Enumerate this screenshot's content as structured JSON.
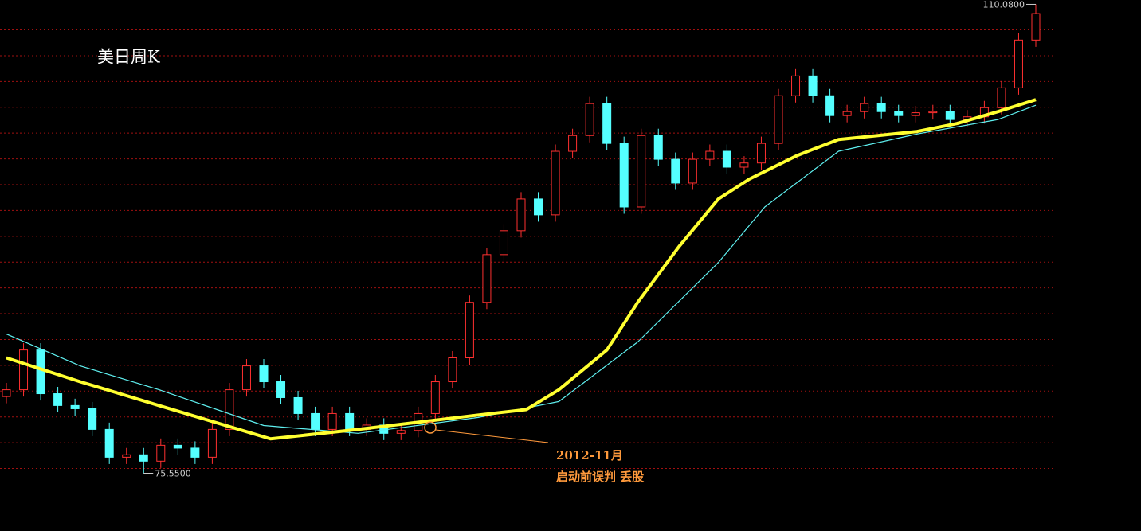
{
  "chart_data": {
    "type": "candlestick",
    "title": "美日周K",
    "ylim": [
      71.3,
      110.4
    ],
    "grid_y": [
      108.2,
      106.3,
      104.4,
      102.5,
      100.6,
      98.7,
      96.8,
      94.9,
      93.0,
      91.1,
      89.2,
      87.3,
      85.4,
      83.5,
      81.6,
      79.7,
      77.8,
      75.9
    ],
    "grid_color": "#a01010",
    "up_color": "#ff3030",
    "down_color": "#54ffff",
    "open": [
      81.2,
      81.7,
      84.63,
      81.41,
      80.54,
      80.3,
      78.78,
      76.73,
      76.91,
      76.44,
      77.61,
      77.4,
      76.73,
      78.78,
      81.7,
      83.46,
      82.29,
      81.12,
      79.95,
      78.78,
      79.95,
      78.78,
      79.1,
      78.49,
      78.7,
      79.95,
      82.29,
      84.05,
      88.14,
      91.65,
      93.41,
      95.75,
      94.58,
      99.26,
      100.42,
      102.77,
      99.84,
      95.16,
      100.42,
      98.67,
      96.92,
      98.67,
      99.26,
      98.09,
      98.4,
      99.84,
      103.35,
      104.81,
      103.35,
      101.89,
      102.18,
      102.77,
      102.18,
      101.89,
      102.1,
      102.18,
      101.6,
      101.8,
      102.47,
      103.93,
      107.45
    ],
    "high": [
      82.2,
      85.13,
      85.13,
      81.91,
      81.04,
      80.8,
      79.28,
      77.41,
      77.41,
      78.11,
      78.11,
      77.9,
      79.28,
      82.2,
      83.96,
      83.96,
      82.79,
      81.62,
      80.45,
      80.45,
      80.45,
      79.6,
      79.6,
      79.2,
      80.45,
      82.79,
      84.55,
      88.64,
      92.15,
      93.91,
      96.25,
      96.25,
      99.76,
      100.92,
      103.27,
      103.27,
      100.34,
      100.92,
      100.92,
      99.17,
      99.17,
      99.76,
      99.76,
      98.9,
      100.34,
      103.85,
      105.31,
      105.31,
      103.85,
      102.68,
      103.27,
      103.27,
      102.68,
      102.6,
      102.68,
      102.68,
      102.3,
      102.97,
      104.43,
      107.95,
      110.08
    ],
    "low": [
      80.7,
      81.2,
      80.91,
      80.04,
      79.8,
      78.28,
      76.23,
      76.23,
      75.55,
      75.94,
      76.9,
      76.23,
      76.23,
      78.28,
      81.2,
      81.79,
      80.62,
      79.45,
      78.28,
      78.28,
      78.28,
      78.28,
      77.99,
      77.99,
      78.2,
      79.45,
      81.79,
      83.55,
      87.64,
      91.15,
      92.91,
      94.08,
      94.08,
      98.76,
      99.92,
      99.34,
      94.66,
      94.66,
      98.17,
      96.42,
      96.42,
      98.17,
      97.59,
      97.59,
      97.9,
      99.34,
      102.85,
      102.85,
      101.39,
      101.39,
      101.68,
      101.68,
      101.39,
      101.39,
      101.6,
      101.1,
      101.1,
      101.3,
      101.97,
      103.43,
      106.95
    ],
    "close": [
      81.7,
      84.63,
      81.41,
      80.54,
      80.3,
      78.78,
      76.73,
      76.91,
      76.44,
      77.61,
      77.4,
      76.73,
      78.78,
      81.7,
      83.46,
      82.29,
      81.12,
      79.95,
      78.78,
      79.95,
      78.78,
      79.1,
      78.49,
      78.7,
      79.95,
      82.29,
      84.05,
      88.14,
      91.65,
      93.41,
      95.75,
      94.58,
      99.26,
      100.42,
      102.77,
      99.84,
      95.16,
      100.42,
      98.67,
      96.92,
      98.67,
      99.26,
      98.09,
      98.4,
      99.84,
      103.35,
      104.81,
      103.35,
      101.89,
      102.18,
      102.77,
      102.18,
      101.89,
      102.1,
      102.18,
      101.6,
      101.8,
      102.47,
      103.93,
      107.45,
      109.4
    ],
    "lines": [
      {
        "color": "#5ff0f0",
        "width": 1.2,
        "x": [
          0,
          4.3,
          8.9,
          15,
          20.5,
          27.5,
          32.2,
          36.8,
          41.5,
          44.2,
          48.5,
          53.1,
          57.8,
          60
        ],
        "values": [
          85.8,
          83.46,
          81.7,
          79.07,
          78.49,
          79.66,
          80.83,
          85.22,
          91.07,
          95.16,
          99.26,
          100.54,
          101.6,
          102.65
        ]
      },
      {
        "color": "#ffff30",
        "width": 4,
        "x": [
          0,
          4.3,
          8.9,
          15.4,
          20.5,
          27.5,
          30.3,
          32.2,
          35,
          36.8,
          39.2,
          41.5,
          43.3,
          46.1,
          48.5,
          50.8,
          53.1,
          55.4,
          57.8,
          60
        ],
        "values": [
          84.05,
          82.29,
          80.54,
          78.08,
          78.78,
          79.84,
          80.24,
          81.7,
          84.63,
          88.14,
          92.24,
          95.75,
          97.21,
          98.96,
          100.13,
          100.42,
          100.72,
          101.3,
          102.18,
          103.06
        ]
      }
    ],
    "max_label": "110.0800",
    "min_label": "75.5500",
    "annotation": [
      "2012-11月",
      "启动前误判 丢股"
    ],
    "annotation_color": "#ff9a3c"
  }
}
